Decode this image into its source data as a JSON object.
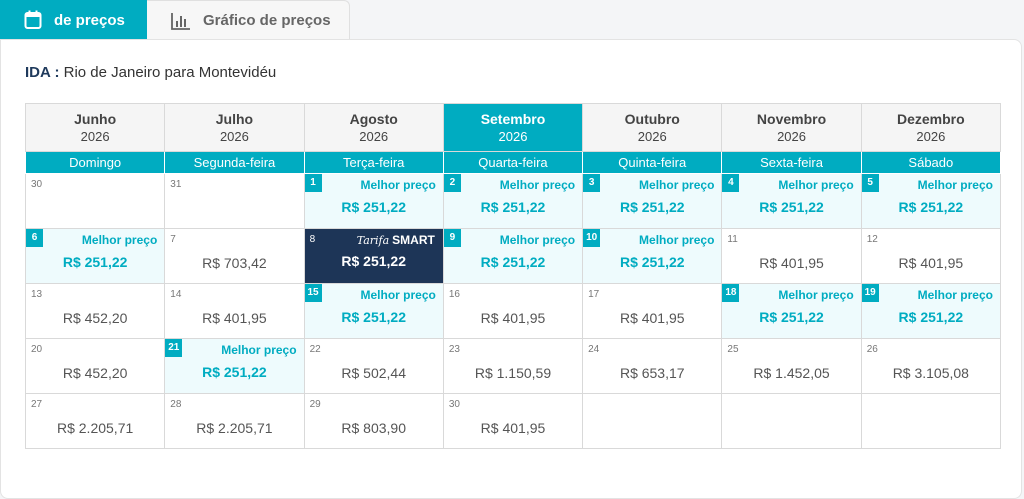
{
  "tabs": [
    {
      "label": "de preços",
      "icon": "calendar-icon",
      "active": true
    },
    {
      "label": "Gráfico de preços",
      "icon": "bar-chart-icon",
      "active": false
    }
  ],
  "route": {
    "prefix": "IDA :",
    "text": "Rio de Janeiro para Montevidéu"
  },
  "months": [
    {
      "name": "Junho",
      "year": "2026"
    },
    {
      "name": "Julho",
      "year": "2026"
    },
    {
      "name": "Agosto",
      "year": "2026"
    },
    {
      "name": "Setembro",
      "year": "2026",
      "selected": true
    },
    {
      "name": "Outubro",
      "year": "2026"
    },
    {
      "name": "Novembro",
      "year": "2026"
    },
    {
      "name": "Dezembro",
      "year": "2026"
    }
  ],
  "weekdays": [
    "Domingo",
    "Segunda-feira",
    "Terça-feira",
    "Quarta-feira",
    "Quinta-feira",
    "Sexta-feira",
    "Sábado"
  ],
  "best_label": "Melhor preço",
  "smart_label": {
    "script": "Tarifa",
    "word": "SMART"
  },
  "colors": {
    "accent": "#00acc1",
    "smart": "#1d3557",
    "best_bg": "#eefbfd"
  },
  "weeks": [
    [
      {
        "day": "30",
        "price": "",
        "type": "empty"
      },
      {
        "day": "31",
        "price": "",
        "type": "empty"
      },
      {
        "day": "1",
        "price": "R$ 251,22",
        "type": "best"
      },
      {
        "day": "2",
        "price": "R$ 251,22",
        "type": "best"
      },
      {
        "day": "3",
        "price": "R$ 251,22",
        "type": "best"
      },
      {
        "day": "4",
        "price": "R$ 251,22",
        "type": "best"
      },
      {
        "day": "5",
        "price": "R$ 251,22",
        "type": "best"
      }
    ],
    [
      {
        "day": "6",
        "price": "R$ 251,22",
        "type": "best"
      },
      {
        "day": "7",
        "price": "R$ 703,42",
        "type": "normal"
      },
      {
        "day": "8",
        "price": "R$ 251,22",
        "type": "smart"
      },
      {
        "day": "9",
        "price": "R$ 251,22",
        "type": "best"
      },
      {
        "day": "10",
        "price": "R$ 251,22",
        "type": "best"
      },
      {
        "day": "11",
        "price": "R$ 401,95",
        "type": "normal"
      },
      {
        "day": "12",
        "price": "R$ 401,95",
        "type": "normal"
      }
    ],
    [
      {
        "day": "13",
        "price": "R$ 452,20",
        "type": "normal"
      },
      {
        "day": "14",
        "price": "R$ 401,95",
        "type": "normal"
      },
      {
        "day": "15",
        "price": "R$ 251,22",
        "type": "best"
      },
      {
        "day": "16",
        "price": "R$ 401,95",
        "type": "normal"
      },
      {
        "day": "17",
        "price": "R$ 401,95",
        "type": "normal"
      },
      {
        "day": "18",
        "price": "R$ 251,22",
        "type": "best"
      },
      {
        "day": "19",
        "price": "R$ 251,22",
        "type": "best"
      }
    ],
    [
      {
        "day": "20",
        "price": "R$ 452,20",
        "type": "normal"
      },
      {
        "day": "21",
        "price": "R$ 251,22",
        "type": "best"
      },
      {
        "day": "22",
        "price": "R$ 502,44",
        "type": "normal"
      },
      {
        "day": "23",
        "price": "R$ 1.150,59",
        "type": "normal"
      },
      {
        "day": "24",
        "price": "R$ 653,17",
        "type": "normal"
      },
      {
        "day": "25",
        "price": "R$ 1.452,05",
        "type": "normal"
      },
      {
        "day": "26",
        "price": "R$ 3.105,08",
        "type": "normal"
      }
    ],
    [
      {
        "day": "27",
        "price": "R$ 2.205,71",
        "type": "normal"
      },
      {
        "day": "28",
        "price": "R$ 2.205,71",
        "type": "normal"
      },
      {
        "day": "29",
        "price": "R$ 803,90",
        "type": "normal"
      },
      {
        "day": "30",
        "price": "R$ 401,95",
        "type": "normal"
      },
      {
        "day": "",
        "price": "",
        "type": "blank"
      },
      {
        "day": "",
        "price": "",
        "type": "blank"
      },
      {
        "day": "",
        "price": "",
        "type": "blank"
      }
    ]
  ]
}
